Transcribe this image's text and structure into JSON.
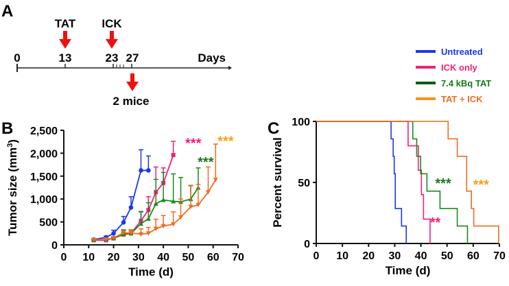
{
  "panel_labels": {
    "a": "A",
    "b": "B",
    "c": "C"
  },
  "timeline": {
    "events": [
      {
        "label": "TAT",
        "day": "13"
      },
      {
        "label": "ICK",
        "day": "23"
      }
    ],
    "start_day": "0",
    "extra_day": "27",
    "unit": "Days",
    "extra_event": "2 mice",
    "arrow_color": "#ee1111"
  },
  "legend": [
    {
      "name": "Untreated",
      "color": "#1a35f0",
      "text_color": "#1a35f0"
    },
    {
      "name": "ICK only",
      "color": "#f0207a",
      "text_color": "#f0207a"
    },
    {
      "name": "7.4 kBq TAT",
      "color": "#0b5a12",
      "text_color": "#1a7a1a"
    },
    {
      "name": "TAT + ICK",
      "color": "#f7901e",
      "text_color": "#f26a22"
    }
  ],
  "chart_data": [
    {
      "type": "line",
      "title": "",
      "xlabel": "Time (d)",
      "ylabel": "Tumor size (mm³)",
      "ylabel_main": "Tumor size (mm",
      "ylabel_sup": "3",
      "ylabel_end": ")",
      "xlim": [
        0,
        70
      ],
      "ylim": [
        0,
        2500
      ],
      "xticks": [
        "0",
        "10",
        "20",
        "30",
        "40",
        "50",
        "60",
        "70"
      ],
      "yticks": [
        "0",
        "500",
        "1,000",
        "1,500",
        "2,000",
        "2,500"
      ],
      "series": [
        {
          "name": "Untreated",
          "color": "#1a35f0",
          "marker": "circle",
          "x": [
            12,
            17,
            20,
            24,
            27,
            31,
            34
          ],
          "y": [
            115,
            165,
            250,
            490,
            815,
            1625,
            1625
          ],
          "err_top": [
            130,
            190,
            320,
            620,
            1050,
            2075,
            1940
          ]
        },
        {
          "name": "ICK only",
          "color": "#f0207a",
          "marker": "square",
          "x": [
            12,
            17,
            20,
            24,
            27,
            31,
            34,
            37,
            40,
            44
          ],
          "y": [
            100,
            100,
            150,
            225,
            250,
            525,
            760,
            1150,
            1350,
            1960
          ],
          "err_top": [
            110,
            110,
            170,
            270,
            300,
            730,
            1050,
            1700,
            1680,
            2260
          ]
        },
        {
          "name": "7.4 kBq TAT",
          "color": "#1a8a1a",
          "marker": "triangle-up",
          "x": [
            12,
            17,
            20,
            24,
            27,
            31,
            34,
            37,
            40,
            44,
            47,
            51,
            54
          ],
          "y": [
            110,
            120,
            140,
            230,
            250,
            460,
            570,
            900,
            980,
            950,
            940,
            1000,
            1250
          ],
          "err_top": [
            120,
            140,
            160,
            330,
            330,
            720,
            920,
            1430,
            1580,
            1550,
            1470,
            1290,
            1680
          ]
        },
        {
          "name": "TAT + ICK",
          "color": "#f26a22",
          "marker": "triangle-down",
          "x": [
            12,
            17,
            20,
            24,
            27,
            31,
            34,
            37,
            40,
            44,
            47,
            51,
            54,
            58,
            61
          ],
          "y": [
            110,
            120,
            150,
            260,
            260,
            230,
            250,
            350,
            410,
            450,
            600,
            830,
            870,
            1150,
            1420
          ],
          "err_top": [
            120,
            140,
            170,
            310,
            330,
            350,
            380,
            560,
            640,
            720,
            1000,
            1300,
            1320,
            1700,
            2200
          ]
        }
      ],
      "annotations": [
        {
          "text": "***",
          "color": "#f0207a",
          "x": 52,
          "y": 2240
        },
        {
          "text": "***",
          "color": "#1a7a1a",
          "x": 57,
          "y": 1830
        },
        {
          "text": "***",
          "color": "#f5a11e",
          "x": 65,
          "y": 2280
        }
      ]
    },
    {
      "type": "line",
      "title": "",
      "xlabel": "Time (d)",
      "ylabel": "Percent survival",
      "xlim": [
        0,
        70
      ],
      "ylim": [
        0,
        100
      ],
      "xticks": [
        "0",
        "10",
        "20",
        "30",
        "40",
        "50",
        "60",
        "70"
      ],
      "yticks": [
        "0",
        "50",
        "100"
      ],
      "series": [
        {
          "name": "Untreated",
          "color": "#1a35f0",
          "step": true,
          "x": [
            0,
            28.6,
            29.4,
            29.8,
            30.2,
            32.6,
            34.4
          ],
          "y": [
            100,
            85.7,
            71.4,
            57.1,
            28.6,
            14.3,
            0
          ]
        },
        {
          "name": "ICK only",
          "color": "#f0207a",
          "step": true,
          "x": [
            0,
            35.1,
            39.0,
            40.2,
            41.0,
            43.5
          ],
          "y": [
            100,
            80,
            60,
            40,
            20,
            0
          ]
        },
        {
          "name": "7.4 kBq TAT",
          "color": "#1a8a1a",
          "step": true,
          "x": [
            0,
            36.9,
            38.4,
            39.9,
            42.3,
            47.3,
            53.9,
            57.8
          ],
          "y": [
            100,
            85.7,
            71.4,
            57.1,
            42.9,
            28.6,
            14.3,
            0
          ]
        },
        {
          "name": "TAT + ICK",
          "color": "#f26a22",
          "step": true,
          "x": [
            0,
            50.4,
            53.9,
            57.5,
            59.3,
            60.2,
            69.7
          ],
          "y": [
            100,
            85.7,
            71.4,
            42.9,
            28.6,
            14.3,
            0
          ]
        }
      ],
      "annotations": [
        {
          "text": "***",
          "color": "#1a7a1a",
          "x": 48.5,
          "y": 50
        },
        {
          "text": "***",
          "color": "#f5a11e",
          "x": 63,
          "y": 49
        },
        {
          "text": "**",
          "color": "#f0207a",
          "x": 45.5,
          "y": 18
        }
      ]
    }
  ]
}
